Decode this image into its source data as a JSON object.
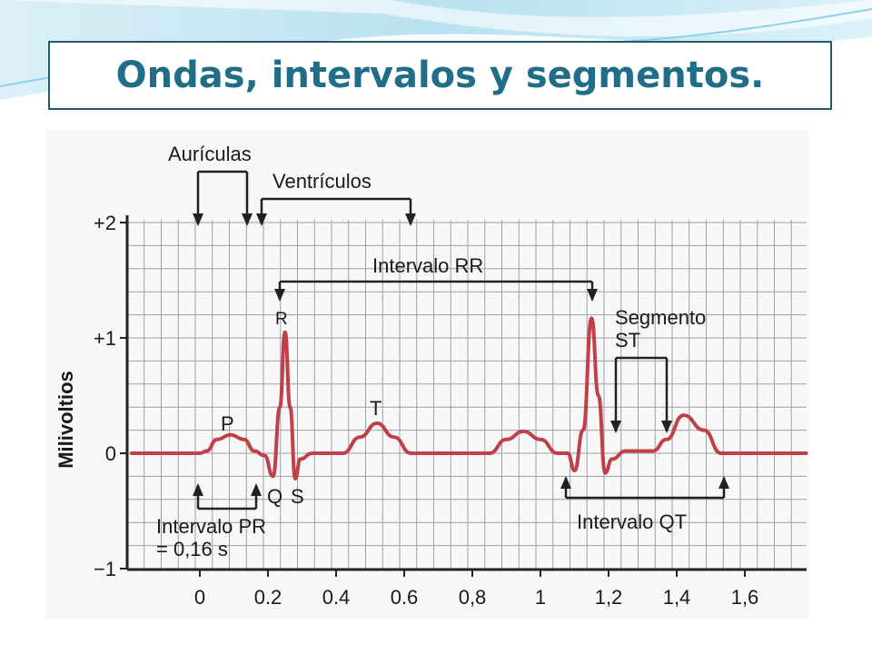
{
  "slide": {
    "title": "Ondas, intervalos y segmentos."
  },
  "figure": {
    "y_axis_title": "Milivoltios",
    "y_ticks": [
      {
        "value": 2,
        "label": "+2"
      },
      {
        "value": 1,
        "label": "+1"
      },
      {
        "value": 0,
        "label": "0"
      },
      {
        "value": -1,
        "label": "−1"
      }
    ],
    "x_ticks": [
      {
        "value": 0,
        "label": "0"
      },
      {
        "value": 0.2,
        "label": "0.2"
      },
      {
        "value": 0.4,
        "label": "0.4"
      },
      {
        "value": 0.6,
        "label": "0.6"
      },
      {
        "value": 0.8,
        "label": "0,8"
      },
      {
        "value": 1.0,
        "label": "1"
      },
      {
        "value": 1.2,
        "label": "1,2"
      },
      {
        "value": 1.4,
        "label": "1,4"
      },
      {
        "value": 1.6,
        "label": "1,6"
      }
    ],
    "waves": {
      "p": "P",
      "r": "R",
      "q": "Q",
      "s": "S",
      "t": "T"
    },
    "annotations": {
      "auriculas": "Aurículas",
      "ventriculos": "Ventrículos",
      "intervalo_rr": "Intervalo RR",
      "segmento_st_1": "Segmento",
      "segmento_st_2": "ST",
      "intervalo_pr_1": "Intervalo PR",
      "intervalo_pr_2": "= 0,16 s",
      "intervalo_qt": "Intervalo QT"
    },
    "colors": {
      "trace": "#c0404a",
      "grid": "#9aa0a6",
      "title": "#1f6d86"
    }
  }
}
